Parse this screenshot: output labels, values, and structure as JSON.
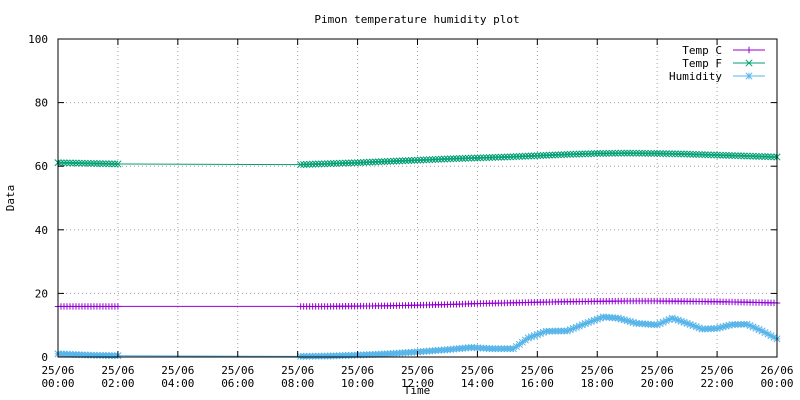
{
  "chart_data": {
    "type": "line",
    "title": "Pimon temperature   humidity plot",
    "xlabel": "Time",
    "ylabel": "Data",
    "ylim": [
      0,
      100
    ],
    "yticks": [
      0,
      20,
      40,
      60,
      80,
      100
    ],
    "xticks": [
      {
        "date": "25/06",
        "time": "00:00",
        "hour": 0
      },
      {
        "date": "25/06",
        "time": "02:00",
        "hour": 2
      },
      {
        "date": "25/06",
        "time": "04:00",
        "hour": 4
      },
      {
        "date": "25/06",
        "time": "06:00",
        "hour": 6
      },
      {
        "date": "25/06",
        "time": "08:00",
        "hour": 8
      },
      {
        "date": "25/06",
        "time": "10:00",
        "hour": 10
      },
      {
        "date": "25/06",
        "time": "12:00",
        "hour": 12
      },
      {
        "date": "25/06",
        "time": "14:00",
        "hour": 14
      },
      {
        "date": "25/06",
        "time": "16:00",
        "hour": 16
      },
      {
        "date": "25/06",
        "time": "18:00",
        "hour": 18
      },
      {
        "date": "25/06",
        "time": "20:00",
        "hour": 20
      },
      {
        "date": "25/06",
        "time": "22:00",
        "hour": 22
      },
      {
        "date": "26/06",
        "time": "00:00",
        "hour": 24
      }
    ],
    "grid": true,
    "legend_position": "top-right",
    "series": [
      {
        "name": "Temp C",
        "color": "#9400d3",
        "marker": "plus",
        "points": [
          [
            0,
            15.9
          ],
          [
            1,
            15.9
          ],
          [
            2,
            15.9
          ],
          [
            8.1,
            15.9
          ],
          [
            9,
            15.9
          ],
          [
            10,
            16.0
          ],
          [
            11,
            16.1
          ],
          [
            12,
            16.3
          ],
          [
            13,
            16.5
          ],
          [
            14,
            16.8
          ],
          [
            15,
            17.0
          ],
          [
            16,
            17.2
          ],
          [
            17,
            17.4
          ],
          [
            18,
            17.5
          ],
          [
            19,
            17.6
          ],
          [
            20,
            17.6
          ],
          [
            21,
            17.5
          ],
          [
            22,
            17.4
          ],
          [
            23,
            17.2
          ],
          [
            24,
            17.0
          ]
        ]
      },
      {
        "name": "Temp F",
        "color": "#009e73",
        "marker": "x",
        "points": [
          [
            0,
            61.1
          ],
          [
            1,
            60.9
          ],
          [
            2,
            60.7
          ],
          [
            8.1,
            60.5
          ],
          [
            9,
            60.8
          ],
          [
            10,
            61.1
          ],
          [
            11,
            61.5
          ],
          [
            12,
            61.9
          ],
          [
            13,
            62.3
          ],
          [
            14,
            62.6
          ],
          [
            15,
            62.9
          ],
          [
            16,
            63.3
          ],
          [
            17,
            63.7
          ],
          [
            18,
            64.0
          ],
          [
            19,
            64.1
          ],
          [
            20,
            64.0
          ],
          [
            21,
            63.8
          ],
          [
            22,
            63.5
          ],
          [
            23,
            63.2
          ],
          [
            24,
            62.9
          ]
        ]
      },
      {
        "name": "Humidity",
        "color": "#56b4e9",
        "marker": "star",
        "points": [
          [
            0,
            1.0
          ],
          [
            1,
            0.6
          ],
          [
            2,
            0.4
          ],
          [
            8.1,
            0.2
          ],
          [
            9,
            0.3
          ],
          [
            10,
            0.6
          ],
          [
            11,
            1.0
          ],
          [
            12,
            1.6
          ],
          [
            13,
            2.3
          ],
          [
            13.8,
            3.0
          ],
          [
            14.5,
            2.6
          ],
          [
            15.2,
            2.6
          ],
          [
            15.7,
            6.0
          ],
          [
            16.3,
            8.1
          ],
          [
            17,
            8.2
          ],
          [
            17.6,
            10.5
          ],
          [
            18.2,
            12.6
          ],
          [
            18.7,
            12.2
          ],
          [
            19.3,
            10.6
          ],
          [
            20,
            10.1
          ],
          [
            20.5,
            12.2
          ],
          [
            21,
            10.6
          ],
          [
            21.5,
            8.8
          ],
          [
            22,
            9.0
          ],
          [
            22.5,
            10.2
          ],
          [
            23,
            10.3
          ],
          [
            23.5,
            8.2
          ],
          [
            24,
            5.7
          ]
        ]
      }
    ]
  }
}
